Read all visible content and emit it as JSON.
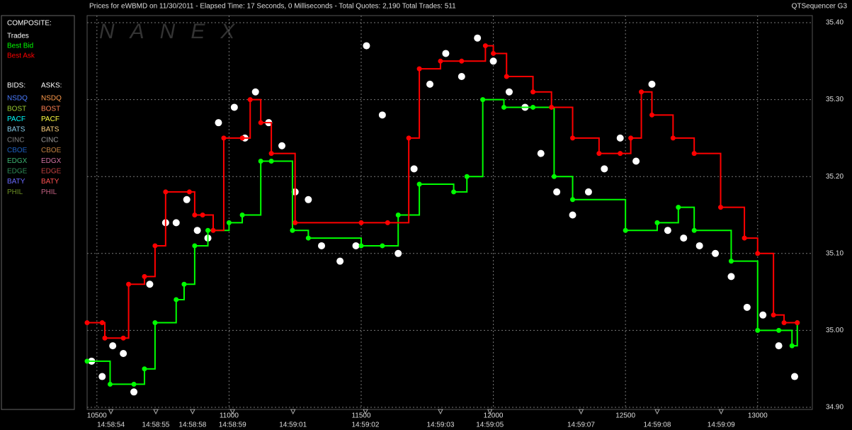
{
  "chart_data": {
    "type": "line",
    "title": "Prices for  eWBMD  on  11/30/2011  -  Elapsed Time: 17 Seconds, 0 Milliseconds  -  Total Quotes: 2,190  Total Trades: 511",
    "app_name": "QTSequencer G3",
    "watermark": "NANEX",
    "composite_label": "COMPOSITE:",
    "bids_label": "BIDS:",
    "asks_label": "ASKS:",
    "exchanges": [
      {
        "name": "NSDQ",
        "bid_color": "#4a7bff",
        "ask_color": "#ff9a4a"
      },
      {
        "name": "BOST",
        "bid_color": "#9acd32",
        "ask_color": "#ff7f50"
      },
      {
        "name": "PACF",
        "bid_color": "#00ffff",
        "ask_color": "#ffff40"
      },
      {
        "name": "BATS",
        "bid_color": "#87ceeb",
        "ask_color": "#ffd27f"
      },
      {
        "name": "CINC",
        "bid_color": "#808080",
        "ask_color": "#9a9a9a"
      },
      {
        "name": "CBOE",
        "bid_color": "#1e60c0",
        "ask_color": "#c08040"
      },
      {
        "name": "EDGX",
        "bid_color": "#3cb371",
        "ask_color": "#d070a0"
      },
      {
        "name": "EDGE",
        "bid_color": "#2e8b57",
        "ask_color": "#c04040"
      },
      {
        "name": "BATY",
        "bid_color": "#6a6aff",
        "ask_color": "#ff5050"
      },
      {
        "name": "PHIL",
        "bid_color": "#6b8e23",
        "ask_color": "#c06080"
      }
    ],
    "xlim": [
      10463,
      13207
    ],
    "ylim": [
      34.9,
      35.4
    ],
    "xticks": [
      10500,
      11000,
      11500,
      12000,
      12500,
      13000
    ],
    "yticks": [
      {
        "value": 34.9,
        "label": "34.90"
      },
      {
        "value": 35.0,
        "label": "35.00"
      },
      {
        "value": 35.1,
        "label": "35.10"
      },
      {
        "value": 35.2,
        "label": "35.20"
      },
      {
        "value": 35.3,
        "label": "35.30"
      },
      {
        "value": 35.4,
        "label": "35.40"
      }
    ],
    "time_ticks": [
      {
        "value": 10553,
        "label": "14:58:54"
      },
      {
        "value": 10723,
        "label": "14:58:55"
      },
      {
        "value": 10862,
        "label": "14:58:58"
      },
      {
        "value": 11013,
        "label": "14:58:59"
      },
      {
        "value": 11242,
        "label": "14:59:01"
      },
      {
        "value": 11516,
        "label": "14:59:02"
      },
      {
        "value": 11800,
        "label": "14:59:03"
      },
      {
        "value": 11987,
        "label": "14:59:05"
      },
      {
        "value": 12332,
        "label": "14:59:07"
      },
      {
        "value": 12620,
        "label": "14:59:08"
      },
      {
        "value": 12862,
        "label": "14:59:09"
      }
    ],
    "grid": true,
    "series": [
      {
        "name": "Trades",
        "color": "#ffffff",
        "style": "dots",
        "x": [
          10480,
          10520,
          10560,
          10600,
          10640,
          10700,
          10760,
          10800,
          10840,
          10880,
          10920,
          10960,
          11020,
          11060,
          11100,
          11150,
          11200,
          11250,
          11300,
          11350,
          11420,
          11480,
          11520,
          11580,
          11640,
          11700,
          11760,
          11820,
          11880,
          11940,
          12000,
          12060,
          12120,
          12180,
          12240,
          12300,
          12360,
          12420,
          12480,
          12540,
          12600,
          12660,
          12720,
          12780,
          12840,
          12900,
          12960,
          13020,
          13080,
          13140
        ],
        "values": [
          34.96,
          34.94,
          34.98,
          34.97,
          34.92,
          35.06,
          35.14,
          35.14,
          35.17,
          35.13,
          35.12,
          35.27,
          35.29,
          35.25,
          35.31,
          35.27,
          35.24,
          35.18,
          35.17,
          35.11,
          35.09,
          35.11,
          35.37,
          35.28,
          35.1,
          35.21,
          35.32,
          35.36,
          35.33,
          35.38,
          35.35,
          35.31,
          35.29,
          35.23,
          35.18,
          35.15,
          35.18,
          35.21,
          35.25,
          35.22,
          35.32,
          35.13,
          35.12,
          35.11,
          35.1,
          35.07,
          35.03,
          35.02,
          34.98,
          34.94
        ]
      },
      {
        "name": "Best Bid",
        "color": "#00ff00",
        "style": "step",
        "x": [
          10463,
          10550,
          10640,
          10680,
          10720,
          10800,
          10830,
          10870,
          10920,
          11000,
          11050,
          11120,
          11160,
          11240,
          11300,
          11500,
          11580,
          11640,
          11720,
          11850,
          11900,
          11960,
          12040,
          12150,
          12230,
          12300,
          12500,
          12620,
          12700,
          12760,
          12900,
          13000,
          13080,
          13130,
          13150
        ],
        "values": [
          34.96,
          34.93,
          34.93,
          34.95,
          35.01,
          35.04,
          35.06,
          35.11,
          35.13,
          35.14,
          35.15,
          35.22,
          35.22,
          35.13,
          35.12,
          35.11,
          35.11,
          35.15,
          35.19,
          35.18,
          35.2,
          35.3,
          35.29,
          35.29,
          35.2,
          35.17,
          35.13,
          35.14,
          35.16,
          35.13,
          35.09,
          35.0,
          35.0,
          34.98,
          35.01
        ]
      },
      {
        "name": "Best Ask",
        "color": "#ff0000",
        "style": "step",
        "x": [
          10463,
          10520,
          10530,
          10600,
          10620,
          10680,
          10720,
          10760,
          10850,
          10870,
          10900,
          10940,
          10980,
          11050,
          11080,
          11120,
          11160,
          11250,
          11500,
          11600,
          11680,
          11720,
          11800,
          11880,
          11970,
          12000,
          12050,
          12150,
          12220,
          12300,
          12400,
          12480,
          12520,
          12560,
          12600,
          12680,
          12760,
          12860,
          12950,
          13000,
          13060,
          13100,
          13150
        ],
        "values": [
          35.01,
          35.01,
          34.99,
          34.99,
          35.06,
          35.07,
          35.11,
          35.18,
          35.18,
          35.15,
          35.15,
          35.13,
          35.25,
          35.25,
          35.3,
          35.27,
          35.23,
          35.14,
          35.14,
          35.14,
          35.25,
          35.34,
          35.35,
          35.35,
          35.37,
          35.36,
          35.33,
          35.31,
          35.29,
          35.25,
          35.23,
          35.23,
          35.25,
          35.31,
          35.28,
          35.25,
          35.23,
          35.16,
          35.12,
          35.1,
          35.02,
          35.01,
          35.01
        ]
      }
    ]
  }
}
